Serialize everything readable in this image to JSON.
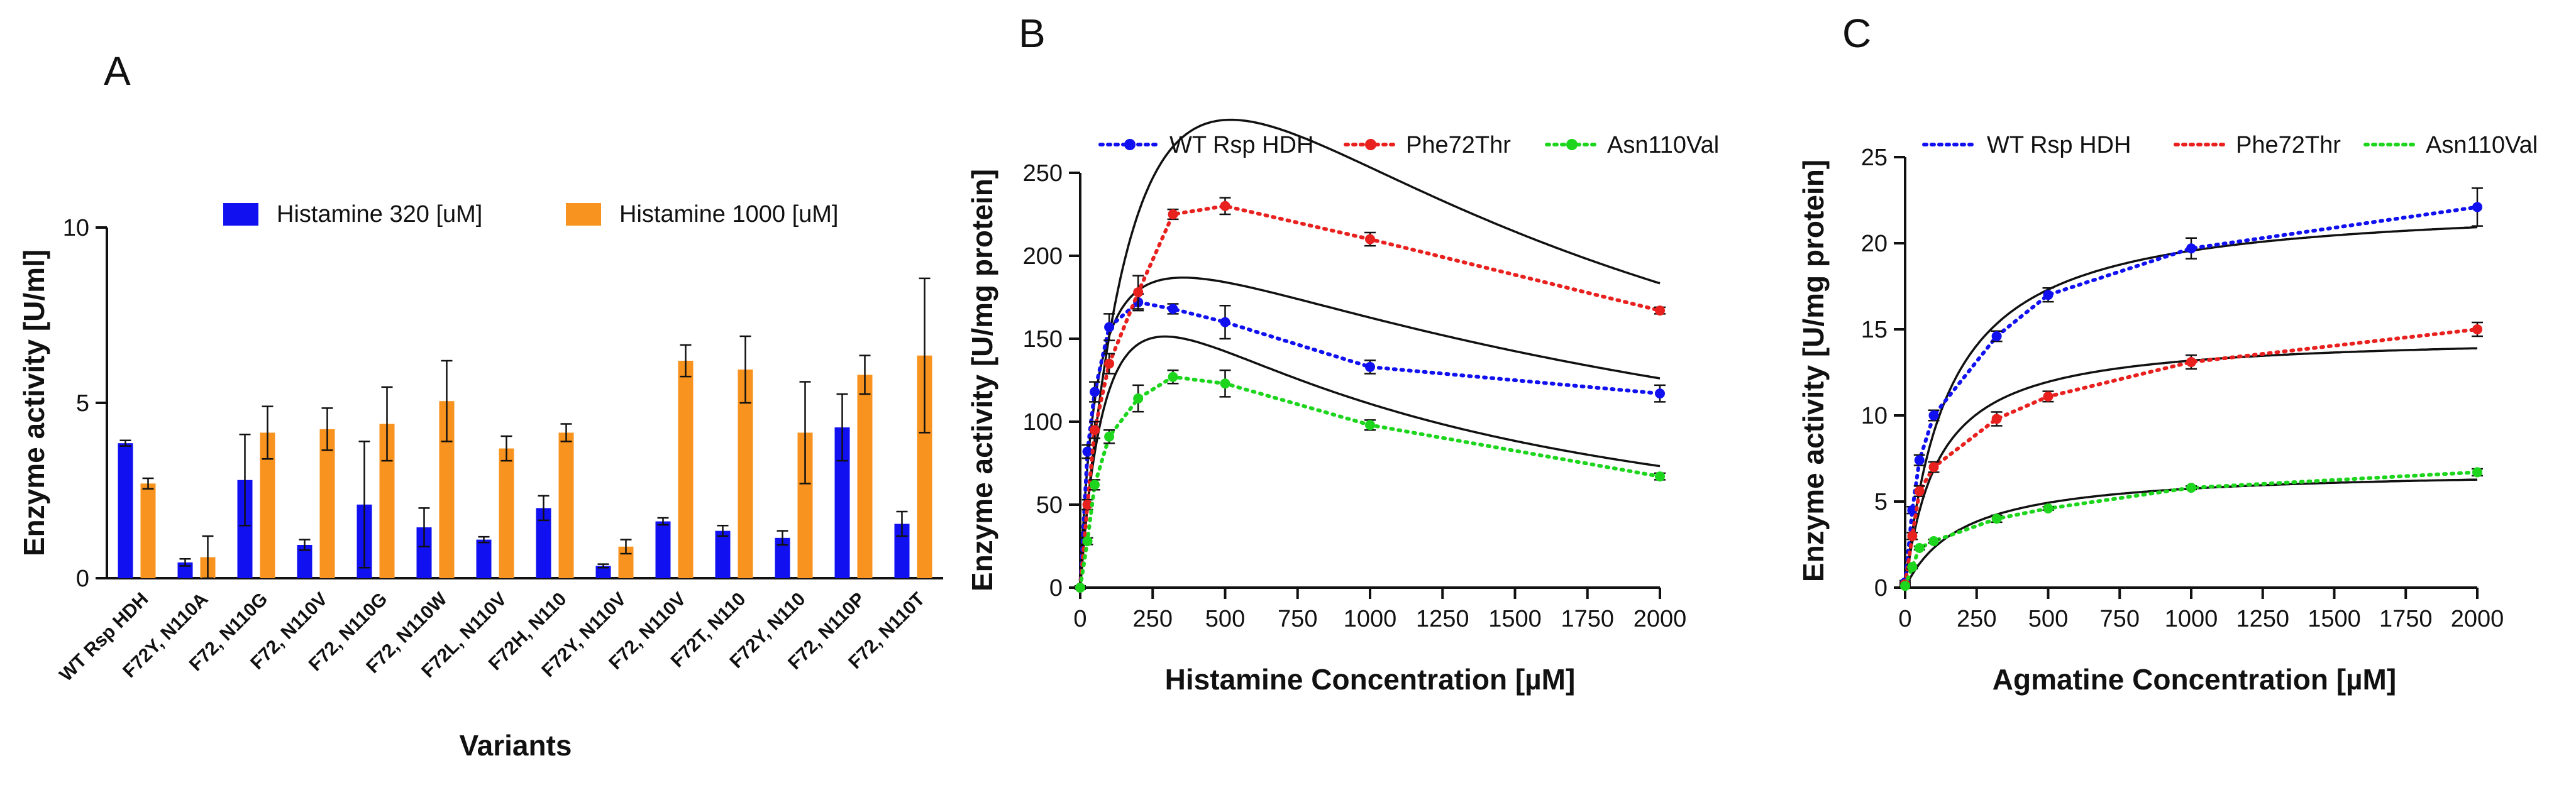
{
  "panels": {
    "a": {
      "letter": "A"
    },
    "b": {
      "letter": "B"
    },
    "c": {
      "letter": "C"
    }
  },
  "colors": {
    "blue": "#1010f0",
    "orange": "#f7931e",
    "red": "#e8201e",
    "green": "#1ed51e",
    "fit": "#111111"
  },
  "chart_data": [
    {
      "id": "A",
      "type": "bar",
      "title": "",
      "xlabel": "Variants",
      "ylabel": "Enzyme activity [U/ml]",
      "ylim": [
        0,
        10
      ],
      "yticks": [
        "0",
        "5",
        "10"
      ],
      "legend_position": "top",
      "categories": [
        "WT Rsp HDH",
        "F72Y, N110A",
        "F72, N110G",
        "F72, N110V",
        "F72, N110G",
        "F72, N110W",
        "F72L, N110V",
        "F72H, N110",
        "F72Y, N110V",
        "F72, N110V",
        "F72T, N110",
        "F72Y, N110",
        "F72, N110P",
        "F72, N110T"
      ],
      "series": [
        {
          "name": "Histamine 320  [uM]",
          "color": "#1010f0",
          "values": [
            3.85,
            0.45,
            2.8,
            0.95,
            2.1,
            1.45,
            1.1,
            2.0,
            0.35,
            1.62,
            1.35,
            1.15,
            4.3,
            1.55
          ],
          "errors": [
            0.08,
            0.1,
            1.3,
            0.15,
            1.8,
            0.55,
            0.08,
            0.35,
            0.05,
            0.1,
            0.15,
            0.2,
            0.95,
            0.35
          ]
        },
        {
          "name": "Histamine 1000 [uM]",
          "color": "#f7931e",
          "values": [
            2.7,
            0.6,
            4.15,
            4.25,
            4.4,
            5.05,
            3.7,
            4.15,
            0.9,
            6.2,
            5.95,
            4.15,
            5.8,
            6.35
          ],
          "errors": [
            0.15,
            0.6,
            0.75,
            0.6,
            1.05,
            1.15,
            0.35,
            0.25,
            0.2,
            0.45,
            0.95,
            1.45,
            0.55,
            2.2
          ]
        }
      ]
    },
    {
      "id": "B",
      "type": "scatter",
      "title": "",
      "xlabel": "Histamine Concentration [µM]",
      "ylabel": "Enzyme activity [U/mg protein]",
      "xlim": [
        0,
        2000
      ],
      "ylim": [
        0,
        250
      ],
      "xticks": [
        "0",
        "250",
        "500",
        "750",
        "1000",
        "1250",
        "1500",
        "1750",
        "2000"
      ],
      "yticks": [
        "0",
        "50",
        "100",
        "150",
        "200",
        "250"
      ],
      "legend_position": "top",
      "x": [
        0,
        25,
        50,
        100,
        200,
        320,
        500,
        1000,
        2000
      ],
      "series": [
        {
          "name": "WT Rsp HDH",
          "color": "#1010f0",
          "values": [
            0,
            82,
            118,
            157,
            172,
            168,
            160,
            133,
            117
          ],
          "errors": [
            1,
            4,
            6,
            8,
            5,
            3,
            10,
            4,
            5
          ],
          "fit": {
            "model": "substrate-inhibition",
            "Vmax": 250,
            "Km": 60,
            "Ki": 2100
          }
        },
        {
          "name": "Phe72Thr",
          "color": "#e8201e",
          "values": [
            0,
            50,
            95,
            135,
            178,
            225,
            230,
            210,
            167
          ],
          "errors": [
            1,
            3,
            5,
            6,
            10,
            3,
            5,
            4,
            2
          ],
          "fit": {
            "model": "substrate-inhibition",
            "Vmax": 575,
            "Km": 270,
            "Ki": 1000
          }
        },
        {
          "name": "Asn110Val",
          "color": "#1ed51e",
          "values": [
            0,
            28,
            62,
            91,
            114,
            127,
            123,
            98,
            67
          ],
          "errors": [
            1,
            2,
            3,
            4,
            8,
            4,
            8,
            3,
            2
          ],
          "fit": {
            "model": "substrate-inhibition",
            "Vmax": 265,
            "Km": 110,
            "Ki": 780
          }
        }
      ]
    },
    {
      "id": "C",
      "type": "scatter",
      "title": "",
      "xlabel": "Agmatine Concentration [µM]",
      "ylabel": "Enzyme activity [U/mg protein]",
      "xlim": [
        0,
        2000
      ],
      "ylim": [
        0,
        25
      ],
      "xticks": [
        "0",
        "250",
        "500",
        "750",
        "1000",
        "1250",
        "1500",
        "1750",
        "2000"
      ],
      "yticks": [
        "0",
        "5",
        "10",
        "15",
        "20",
        "25"
      ],
      "legend_position": "top",
      "x": [
        0,
        25,
        50,
        100,
        320,
        500,
        1000,
        2000
      ],
      "series": [
        {
          "name": "WT Rsp HDH",
          "color": "#1010f0",
          "values": [
            0.3,
            4.5,
            7.4,
            10.0,
            14.6,
            17.0,
            19.7,
            22.1
          ],
          "errors": [
            0.1,
            0.2,
            0.3,
            0.3,
            0.3,
            0.4,
            0.6,
            1.1
          ],
          "fit": {
            "model": "michaelis-menten",
            "Vmax": 22.5,
            "Km": 150
          }
        },
        {
          "name": "Phe72Thr",
          "color": "#e8201e",
          "values": [
            0.2,
            3.0,
            5.6,
            7.0,
            9.8,
            11.1,
            13.1,
            15.0
          ],
          "errors": [
            0.1,
            0.2,
            0.3,
            0.3,
            0.4,
            0.3,
            0.4,
            0.4
          ],
          "fit": {
            "model": "michaelis-menten",
            "Vmax": 14.7,
            "Km": 115
          }
        },
        {
          "name": "Asn110Val",
          "color": "#1ed51e",
          "values": [
            0.1,
            1.2,
            2.3,
            2.7,
            4.0,
            4.6,
            5.8,
            6.7
          ],
          "errors": [
            0.1,
            0.1,
            0.1,
            0.1,
            0.2,
            0.1,
            0.1,
            0.2
          ],
          "fit": {
            "model": "michaelis-menten",
            "Vmax": 6.9,
            "Km": 200
          }
        }
      ]
    }
  ]
}
